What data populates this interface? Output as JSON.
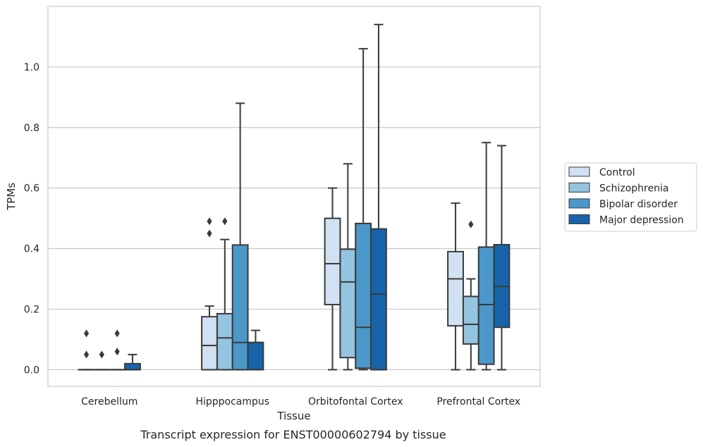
{
  "caption": "Transcript expression for ENST00000602794 by tissue",
  "chart_data": {
    "type": "box",
    "title": "",
    "xlabel": "Tissue",
    "ylabel": "TPMs",
    "categories": [
      "Cerebellum",
      "Hipppocampus",
      "Orbitofontal Cortex",
      "Prefrontal Cortex"
    ],
    "ylim": [
      -0.055,
      1.2
    ],
    "yticks": [
      0.0,
      0.2,
      0.4,
      0.6,
      0.8,
      1.0
    ],
    "ytick_labels": [
      "0.0",
      "0.2",
      "0.4",
      "0.6",
      "0.8",
      "1.0"
    ],
    "grid": "horizontal",
    "legend_position": "right",
    "series": [
      {
        "name": "Control",
        "color": "#d0e1f2",
        "boxes": [
          {
            "whisker_low": 0.0,
            "q1": 0.0,
            "median": 0.0,
            "q3": 0.0,
            "whisker_high": 0.0,
            "outliers": [
              0.12,
              0.05
            ]
          },
          {
            "whisker_low": 0.0,
            "q1": 0.0,
            "median": 0.08,
            "q3": 0.175,
            "whisker_high": 0.21,
            "outliers": [
              0.49,
              0.45
            ]
          },
          {
            "whisker_low": 0.0,
            "q1": 0.215,
            "median": 0.35,
            "q3": 0.5,
            "whisker_high": 0.6,
            "outliers": []
          },
          {
            "whisker_low": 0.0,
            "q1": 0.145,
            "median": 0.3,
            "q3": 0.39,
            "whisker_high": 0.55,
            "outliers": []
          }
        ]
      },
      {
        "name": "Schizophrenia",
        "color": "#94c4df",
        "boxes": [
          {
            "whisker_low": 0.0,
            "q1": 0.0,
            "median": 0.0,
            "q3": 0.0,
            "whisker_high": 0.0,
            "outliers": [
              0.05
            ]
          },
          {
            "whisker_low": 0.0,
            "q1": 0.0,
            "median": 0.105,
            "q3": 0.185,
            "whisker_high": 0.43,
            "outliers": [
              0.49
            ]
          },
          {
            "whisker_low": 0.0,
            "q1": 0.04,
            "median": 0.29,
            "q3": 0.398,
            "whisker_high": 0.68,
            "outliers": []
          },
          {
            "whisker_low": 0.0,
            "q1": 0.085,
            "median": 0.15,
            "q3": 0.242,
            "whisker_high": 0.3,
            "outliers": [
              0.48
            ]
          }
        ]
      },
      {
        "name": "Bipolar disorder",
        "color": "#4a98c9",
        "boxes": [
          {
            "whisker_low": 0.0,
            "q1": 0.0,
            "median": 0.0,
            "q3": 0.0,
            "whisker_high": 0.0,
            "outliers": [
              0.12,
              0.06
            ]
          },
          {
            "whisker_low": 0.0,
            "q1": 0.0,
            "median": 0.09,
            "q3": 0.412,
            "whisker_high": 0.88,
            "outliers": []
          },
          {
            "whisker_low": 0.0,
            "q1": 0.005,
            "median": 0.14,
            "q3": 0.483,
            "whisker_high": 1.06,
            "outliers": []
          },
          {
            "whisker_low": 0.0,
            "q1": 0.018,
            "median": 0.215,
            "q3": 0.405,
            "whisker_high": 0.75,
            "outliers": []
          }
        ]
      },
      {
        "name": "Major depression",
        "color": "#1764ab",
        "boxes": [
          {
            "whisker_low": 0.0,
            "q1": 0.0,
            "median": 0.0,
            "q3": 0.02,
            "whisker_high": 0.05,
            "outliers": []
          },
          {
            "whisker_low": 0.0,
            "q1": 0.0,
            "median": 0.09,
            "q3": 0.09,
            "whisker_high": 0.13,
            "outliers": []
          },
          {
            "whisker_low": 0.0,
            "q1": 0.0,
            "median": 0.25,
            "q3": 0.465,
            "whisker_high": 1.14,
            "outliers": []
          },
          {
            "whisker_low": 0.0,
            "q1": 0.14,
            "median": 0.275,
            "q3": 0.413,
            "whisker_high": 0.74,
            "outliers": []
          }
        ]
      }
    ]
  }
}
